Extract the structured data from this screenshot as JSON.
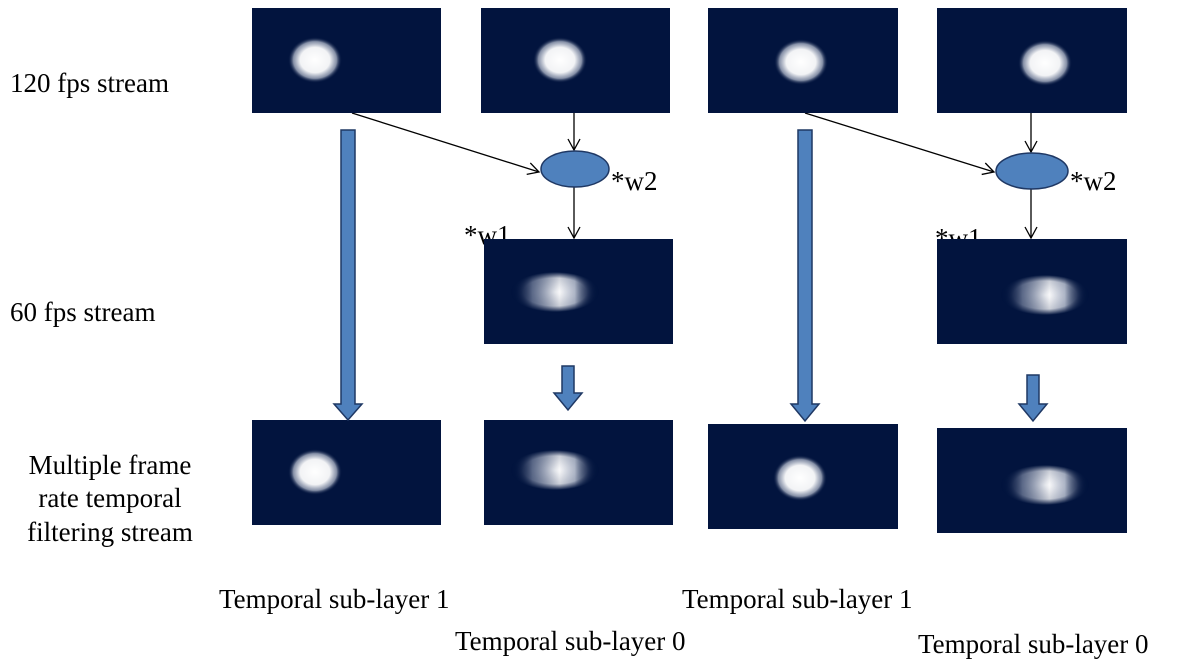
{
  "row_labels": {
    "fps120": "120 fps stream",
    "fps60": "60 fps stream",
    "multi": [
      "Multiple frame",
      "rate temporal",
      "filtering stream"
    ]
  },
  "weights": {
    "w1": "*w1",
    "w2": "*w2"
  },
  "sublayers": {
    "layer1": "Temporal sub-layer 1",
    "layer0": "Temporal sub-layer 0"
  },
  "colors": {
    "frame_bg": "#02143E",
    "blob": "#FFFFFF",
    "combiner_fill": "#4F81BD",
    "block_arrow_fill": "#4F81BD",
    "block_arrow_stroke": "#1F3864",
    "line": "#000000"
  },
  "frames": {
    "row120": [
      {
        "id": "f120-1",
        "blob": "sharp"
      },
      {
        "id": "f120-2",
        "blob": "sharp"
      },
      {
        "id": "f120-3",
        "blob": "sharp"
      },
      {
        "id": "f120-4",
        "blob": "sharp"
      }
    ],
    "row60": [
      {
        "id": "f60-1",
        "blob": "blurred"
      },
      {
        "id": "f60-2",
        "blob": "blurred"
      }
    ],
    "rowMulti": [
      {
        "id": "fm-1",
        "blob": "sharp"
      },
      {
        "id": "fm-2",
        "blob": "blurred"
      },
      {
        "id": "fm-3",
        "blob": "sharp"
      },
      {
        "id": "fm-4",
        "blob": "blurred"
      }
    ]
  }
}
